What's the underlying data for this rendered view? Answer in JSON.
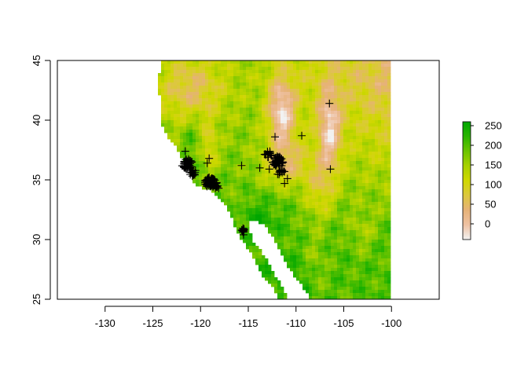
{
  "map": {
    "xlim": [
      -135,
      -95
    ],
    "ylim": [
      25,
      45
    ],
    "raster_extent": {
      "lon": [
        -125,
        -100
      ],
      "lat": [
        25,
        45
      ]
    },
    "x_ticks": [
      -130,
      -125,
      -120,
      -115,
      -110,
      -105,
      -100
    ],
    "y_ticks": [
      25,
      30,
      35,
      40,
      45
    ],
    "x_tick_labels": [
      "-130",
      "-125",
      "-120",
      "-115",
      "-110",
      "-105",
      "-100"
    ],
    "y_tick_labels": [
      "25",
      "30",
      "35",
      "40",
      "45"
    ]
  },
  "legend": {
    "min": -40,
    "max": 260,
    "ticks": [
      0,
      50,
      100,
      150,
      200,
      250
    ],
    "tick_labels": [
      "0",
      "50",
      "100",
      "150",
      "200",
      "250"
    ],
    "colors": [
      "#f2f2f2",
      "#eec1a2",
      "#e6b277",
      "#dcc83e",
      "#cfd800",
      "#a8d100",
      "#6cc400",
      "#29b500",
      "#00a600"
    ]
  },
  "occurrence_clusters": [
    {
      "lon": -121.4,
      "lat": 36.3,
      "n": 45,
      "spread": 0.55
    },
    {
      "lon": -120.8,
      "lat": 35.6,
      "n": 15,
      "spread": 0.35
    },
    {
      "lon": -119.0,
      "lat": 34.8,
      "n": 55,
      "spread": 0.55
    },
    {
      "lon": -118.5,
      "lat": 34.6,
      "n": 15,
      "spread": 0.35
    },
    {
      "lon": -115.6,
      "lat": 30.8,
      "n": 12,
      "spread": 0.25
    },
    {
      "lon": -112.9,
      "lat": 37.2,
      "n": 15,
      "spread": 0.4
    },
    {
      "lon": -111.9,
      "lat": 36.5,
      "n": 45,
      "spread": 0.55
    },
    {
      "lon": -111.6,
      "lat": 35.7,
      "n": 12,
      "spread": 0.45
    }
  ],
  "occurrence_points": [
    [
      -106.5,
      41.4
    ],
    [
      -106.4,
      35.9
    ],
    [
      -109.4,
      38.7
    ],
    [
      -112.2,
      38.6
    ],
    [
      -115.7,
      36.2
    ],
    [
      -113.8,
      36.0
    ],
    [
      -121.6,
      37.4
    ],
    [
      -119.1,
      36.8
    ],
    [
      -119.3,
      36.4
    ],
    [
      -118.1,
      34.3
    ],
    [
      -115.5,
      30.4
    ],
    [
      -111.2,
      34.7
    ],
    [
      -110.9,
      35.1
    ],
    [
      -112.8,
      35.9
    ]
  ]
}
